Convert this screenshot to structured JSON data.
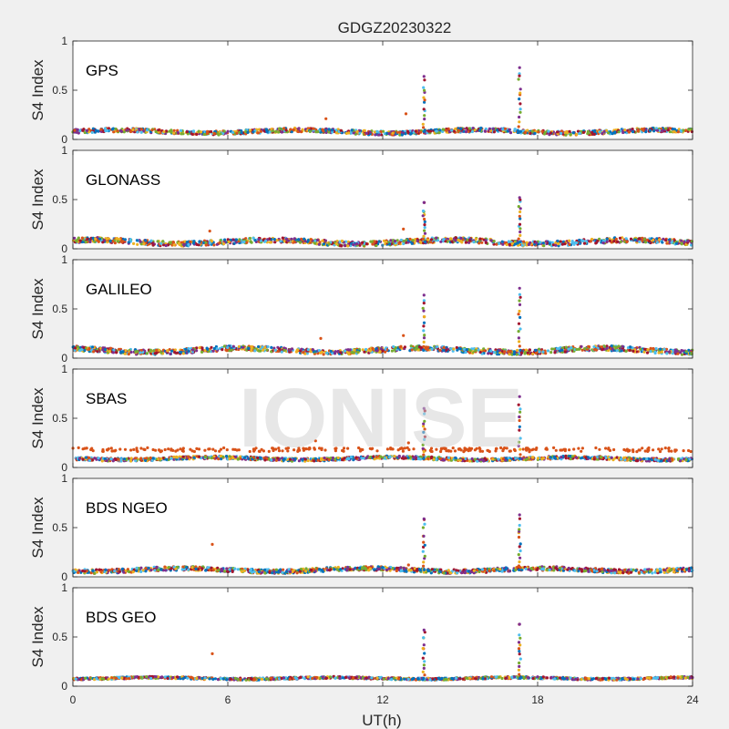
{
  "figure": {
    "title": "GDGZ20230322",
    "xlabel": "UT(h)",
    "watermark": "IONISE"
  },
  "palette": [
    "#0072BD",
    "#D95319",
    "#EDB120",
    "#7E2F8E",
    "#77AC30",
    "#4DBEEE",
    "#A2142F"
  ],
  "chart_data": [
    {
      "type": "scatter",
      "panel": "GPS",
      "ylabel": "S4 Index",
      "xlim": [
        0,
        24
      ],
      "ylim": [
        0,
        1
      ],
      "xticks": [
        "0",
        "6",
        "12",
        "18",
        "24"
      ],
      "yticks": [
        "0",
        "0.5",
        "1"
      ],
      "baseline": 0.08,
      "spread": 0.04,
      "spikes": [
        {
          "x": 13.6,
          "peak": 0.64
        },
        {
          "x": 17.3,
          "peak": 0.73
        }
      ],
      "outliers": [
        {
          "x": 9.8,
          "y": 0.21
        },
        {
          "x": 12.9,
          "y": 0.26
        }
      ]
    },
    {
      "type": "scatter",
      "panel": "GLONASS",
      "ylabel": "S4 Index",
      "xlim": [
        0,
        24
      ],
      "ylim": [
        0,
        1
      ],
      "xticks": [
        "0",
        "6",
        "12",
        "18",
        "24"
      ],
      "yticks": [
        "0",
        "0.5",
        "1"
      ],
      "baseline": 0.07,
      "spread": 0.05,
      "spikes": [
        {
          "x": 13.6,
          "peak": 0.47
        },
        {
          "x": 17.3,
          "peak": 0.52
        }
      ],
      "outliers": [
        {
          "x": 5.3,
          "y": 0.18
        },
        {
          "x": 12.8,
          "y": 0.2
        }
      ]
    },
    {
      "type": "scatter",
      "panel": "GALILEO",
      "ylabel": "S4 Index",
      "xlim": [
        0,
        24
      ],
      "ylim": [
        0,
        1
      ],
      "xticks": [
        "0",
        "6",
        "12",
        "18",
        "24"
      ],
      "yticks": [
        "0",
        "0.5",
        "1"
      ],
      "baseline": 0.08,
      "spread": 0.05,
      "spikes": [
        {
          "x": 13.6,
          "peak": 0.64
        },
        {
          "x": 17.3,
          "peak": 0.71
        }
      ],
      "outliers": [
        {
          "x": 9.6,
          "y": 0.2
        },
        {
          "x": 12.8,
          "y": 0.23
        }
      ]
    },
    {
      "type": "scatter",
      "panel": "SBAS",
      "ylabel": "S4 Index",
      "xlim": [
        0,
        24
      ],
      "ylim": [
        0,
        1
      ],
      "xticks": [
        "0",
        "6",
        "12",
        "18",
        "24"
      ],
      "yticks": [
        "0",
        "0.5",
        "1"
      ],
      "baseline": 0.09,
      "spread": 0.03,
      "upper_band": 0.18,
      "spikes": [
        {
          "x": 13.6,
          "peak": 0.6
        },
        {
          "x": 17.3,
          "peak": 0.72
        }
      ],
      "outliers": [
        {
          "x": 9.4,
          "y": 0.27
        },
        {
          "x": 13.0,
          "y": 0.25
        }
      ]
    },
    {
      "type": "scatter",
      "panel": "BDS NGEO",
      "ylabel": "S4 Index",
      "xlim": [
        0,
        24
      ],
      "ylim": [
        0,
        1
      ],
      "xticks": [
        "0",
        "6",
        "12",
        "18",
        "24"
      ],
      "yticks": [
        "0",
        "0.5",
        "1"
      ],
      "baseline": 0.07,
      "spread": 0.04,
      "spikes": [
        {
          "x": 13.6,
          "peak": 0.59
        },
        {
          "x": 17.3,
          "peak": 0.63
        }
      ],
      "outliers": [
        {
          "x": 5.4,
          "y": 0.33
        },
        {
          "x": 13.0,
          "y": 0.12
        }
      ]
    },
    {
      "type": "scatter",
      "panel": "BDS GEO",
      "ylabel": "S4 Index",
      "xlim": [
        0,
        24
      ],
      "ylim": [
        0,
        1
      ],
      "xticks": [
        "0",
        "6",
        "12",
        "18",
        "24"
      ],
      "yticks": [
        "0",
        "0.5",
        "1"
      ],
      "baseline": 0.08,
      "spread": 0.02,
      "spikes": [
        {
          "x": 13.6,
          "peak": 0.57
        },
        {
          "x": 17.3,
          "peak": 0.63
        }
      ],
      "outliers": [
        {
          "x": 5.4,
          "y": 0.33
        }
      ]
    }
  ]
}
